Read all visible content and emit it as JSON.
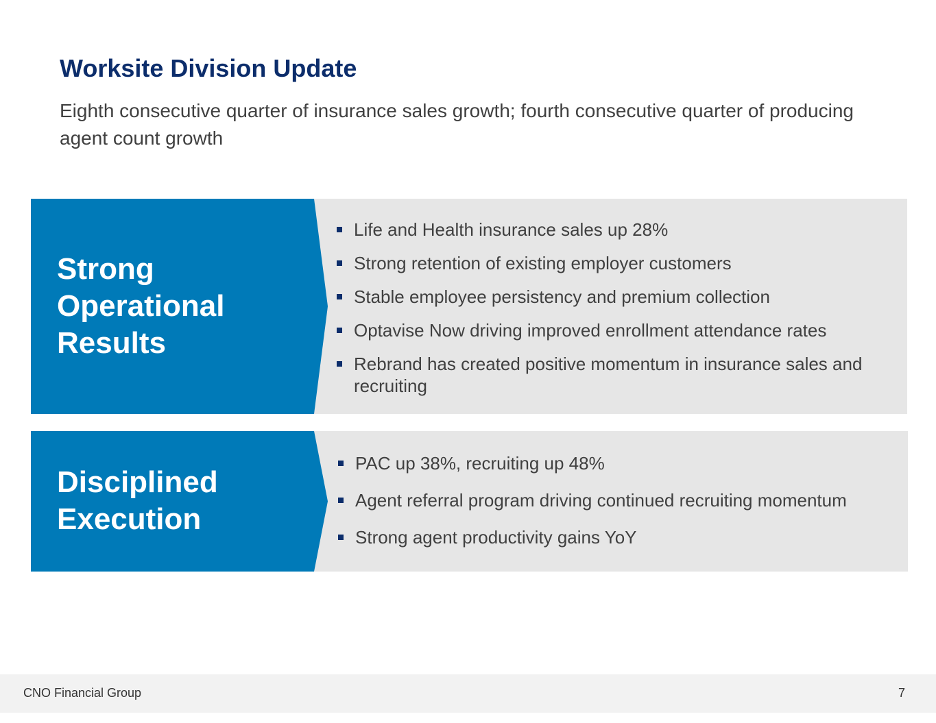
{
  "slide": {
    "title": "Worksite Division Update",
    "subtitle": "Eighth consecutive quarter of insurance sales growth; fourth consecutive quarter of producing agent count growth"
  },
  "panels": [
    {
      "label_lines": [
        "Strong",
        "Operational",
        "Results"
      ],
      "bullets": [
        "Life and Health insurance sales up 28%",
        "Strong retention of existing employer customers",
        "Stable employee persistency and premium collection",
        "Optavise Now driving improved enrollment attendance rates",
        "Rebrand has created positive momentum in insurance sales and recruiting"
      ]
    },
    {
      "label_lines": [
        "Disciplined",
        "Execution"
      ],
      "bullets": [
        "PAC up 38%, recruiting up 48%",
        "Agent referral program driving continued recruiting momentum",
        "Strong agent productivity gains YoY"
      ]
    }
  ],
  "footer": {
    "company": "CNO Financial Group",
    "page_number": "7"
  },
  "colors": {
    "title": "#0c2d6b",
    "chevron": "#007ab8",
    "panel_bg": "#e6e6e6",
    "body_text": "#404040"
  }
}
